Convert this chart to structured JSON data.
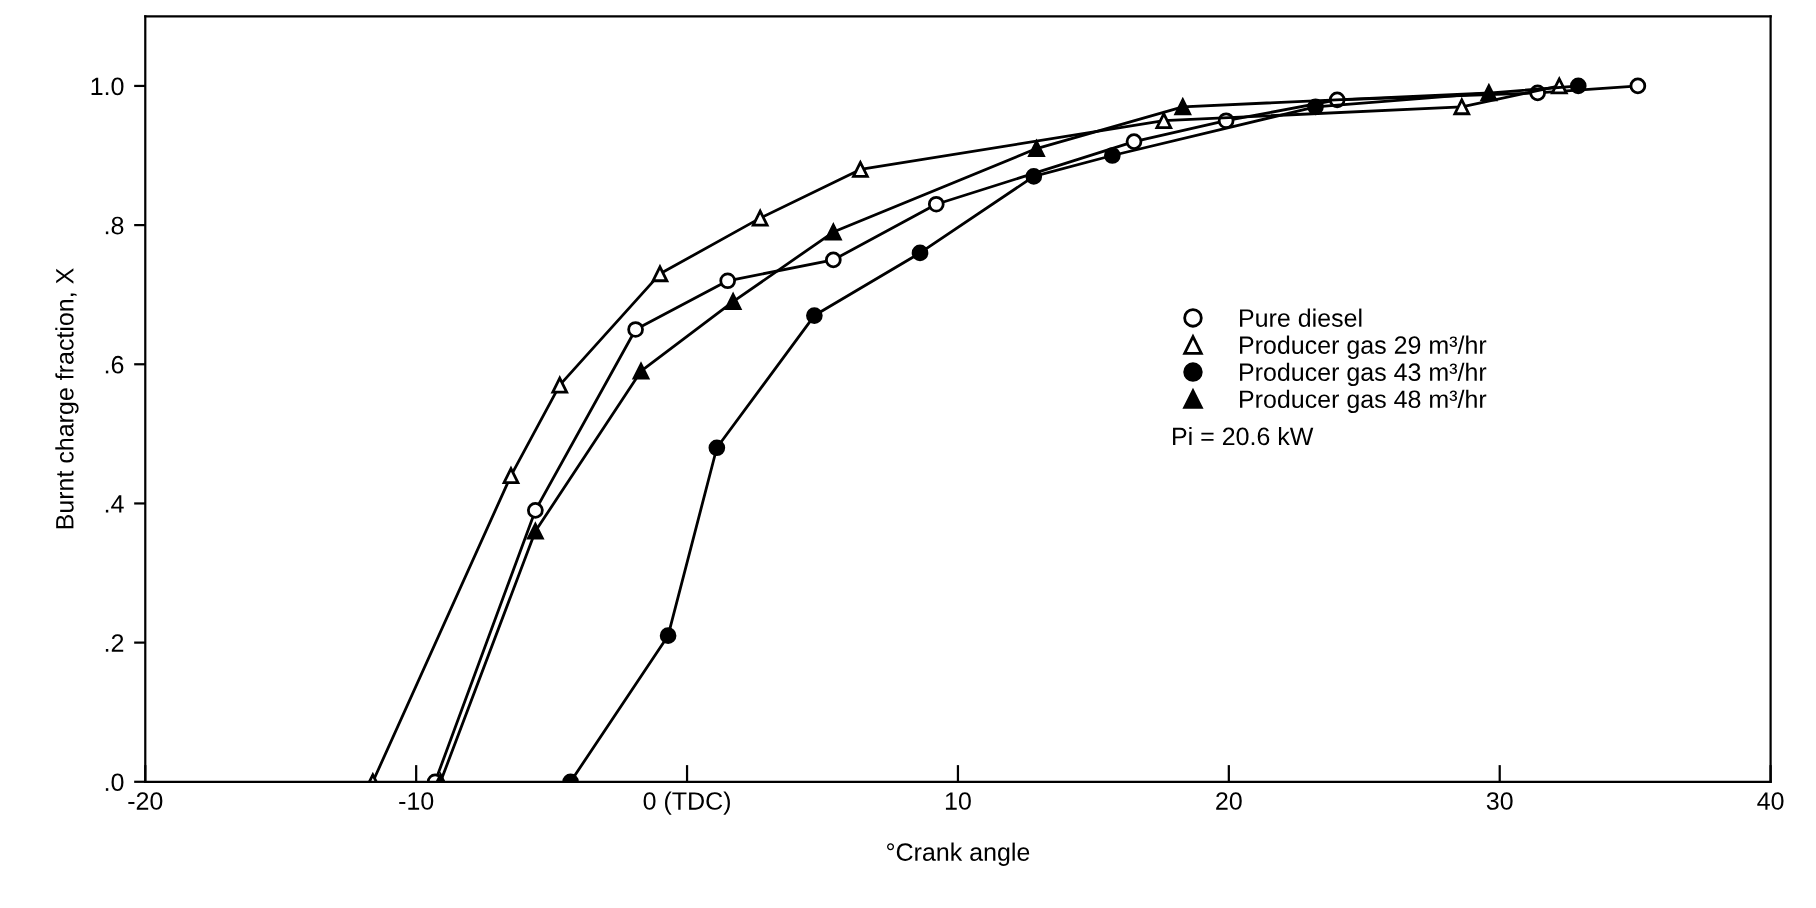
{
  "chart_data": {
    "type": "line",
    "xlabel": "°Crank angle",
    "ylabel": "Burnt charge fraction, X",
    "xlim": [
      -20,
      40
    ],
    "ylim": [
      0,
      1.1
    ],
    "xticks": [
      -20,
      -10,
      {
        "value": 0,
        "label": "0 (TDC)"
      },
      10,
      20,
      30,
      40
    ],
    "yticks": [
      {
        "value": 0,
        "label": ".0"
      },
      {
        "value": 0.2,
        "label": ".2"
      },
      {
        "value": 0.4,
        "label": ".4"
      },
      {
        "value": 0.6,
        "label": ".6"
      },
      {
        "value": 0.8,
        "label": ".8"
      },
      {
        "value": 1.0,
        "label": "1.0"
      }
    ],
    "grid": false,
    "legend": "right",
    "annotations": [
      "Pi = 20.6 kW"
    ],
    "series": [
      {
        "name": "Pure diesel",
        "color": "#000000",
        "marker": "circle-open",
        "x": [
          -9.3,
          -5.6,
          -1.9,
          1.5,
          5.4,
          9.2,
          16.5,
          19.9,
          24.0,
          31.4,
          35.1
        ],
        "values": [
          0.0,
          0.39,
          0.65,
          0.72,
          0.75,
          0.83,
          0.92,
          0.95,
          0.98,
          0.99,
          1.0
        ]
      },
      {
        "name": "Producer gas 29 m³/hr",
        "color": "#000000",
        "marker": "triangle-open",
        "x": [
          -11.6,
          -6.5,
          -4.7,
          -1.0,
          2.7,
          6.4,
          17.6,
          28.6,
          32.2
        ],
        "values": [
          0.0,
          0.44,
          0.57,
          0.73,
          0.81,
          0.88,
          0.95,
          0.97,
          1.0
        ]
      },
      {
        "name": "Producer gas 43 m³/hr",
        "color": "#000000",
        "marker": "circle",
        "x": [
          -4.3,
          -0.7,
          1.1,
          4.7,
          8.6,
          12.8,
          15.7,
          23.2,
          32.9
        ],
        "values": [
          0.0,
          0.21,
          0.48,
          0.67,
          0.76,
          0.87,
          0.9,
          0.97,
          1.0
        ]
      },
      {
        "name": "Producer gas 48 m³/hr",
        "color": "#000000",
        "marker": "triangle",
        "x": [
          -9.1,
          -5.6,
          -1.7,
          1.7,
          5.4,
          12.9,
          18.3,
          29.6
        ],
        "values": [
          0.0,
          0.36,
          0.59,
          0.69,
          0.79,
          0.91,
          0.97,
          0.99
        ]
      }
    ]
  }
}
